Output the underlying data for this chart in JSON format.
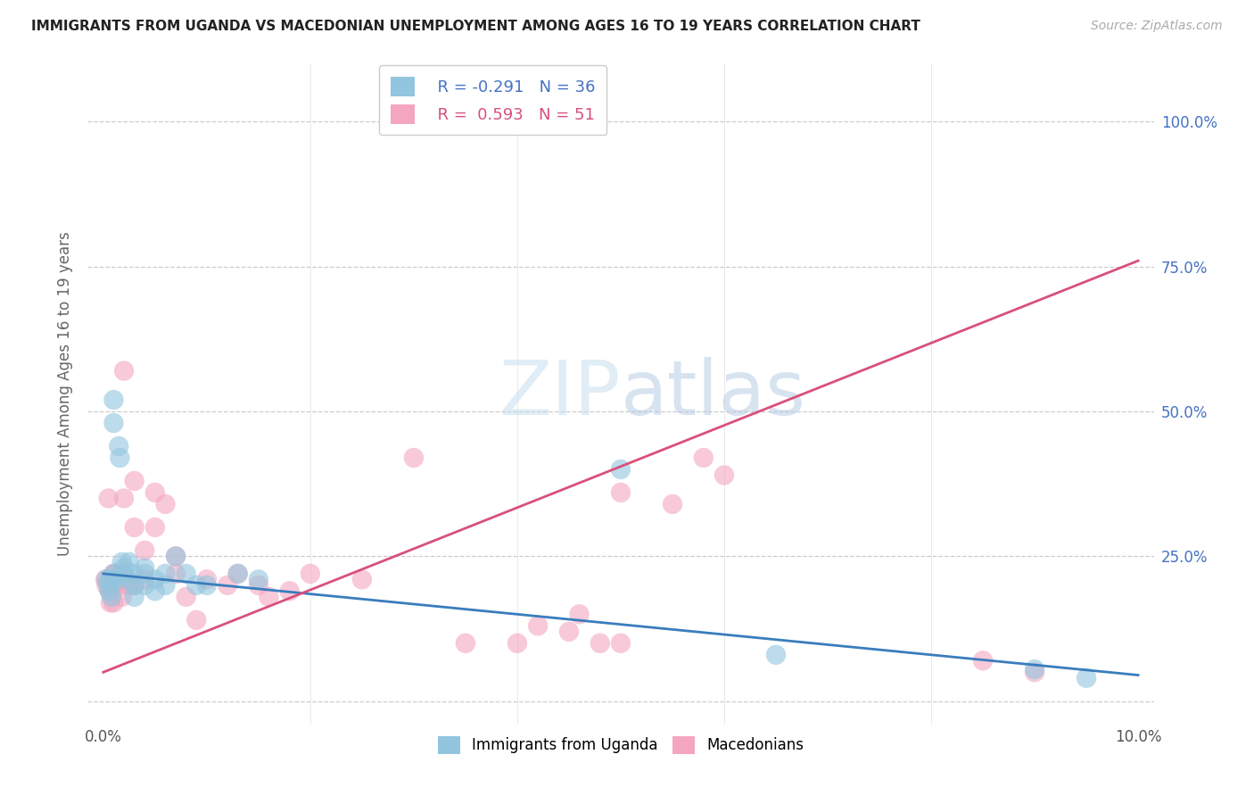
{
  "title": "IMMIGRANTS FROM UGANDA VS MACEDONIAN UNEMPLOYMENT AMONG AGES 16 TO 19 YEARS CORRELATION CHART",
  "source": "Source: ZipAtlas.com",
  "ylabel": "Unemployment Among Ages 16 to 19 years",
  "xlim": [
    0.0,
    0.1
  ],
  "ylim": [
    0.0,
    1.1
  ],
  "x_tick_vals": [
    0.0,
    0.02,
    0.04,
    0.06,
    0.08,
    0.1
  ],
  "x_tick_labels": [
    "0.0%",
    "",
    "",
    "",
    "",
    "10.0%"
  ],
  "y_tick_vals": [
    0.0,
    0.25,
    0.5,
    0.75,
    1.0
  ],
  "y_tick_labels_right": [
    "",
    "25.0%",
    "50.0%",
    "75.0%",
    "100.0%"
  ],
  "legend_label1": "Immigrants from Uganda",
  "legend_label2": "Macedonians",
  "r1": "-0.291",
  "n1": "36",
  "r2": "0.593",
  "n2": "51",
  "color_blue": "#92c5de",
  "color_pink": "#f4a6c0",
  "line_color_blue": "#3a7dbd",
  "line_color_pink": "#d9507a",
  "ug_line": [
    0.22,
    0.045
  ],
  "mac_line": [
    0.05,
    0.76
  ],
  "uganda_x": [
    0.0003,
    0.0005,
    0.0006,
    0.0007,
    0.0008,
    0.001,
    0.001,
    0.001,
    0.0013,
    0.0015,
    0.0016,
    0.0018,
    0.002,
    0.002,
    0.0023,
    0.0025,
    0.003,
    0.003,
    0.003,
    0.004,
    0.004,
    0.004,
    0.005,
    0.005,
    0.006,
    0.006,
    0.007,
    0.008,
    0.009,
    0.01,
    0.013,
    0.015,
    0.05,
    0.065,
    0.09,
    0.095
  ],
  "uganda_y": [
    0.21,
    0.2,
    0.19,
    0.21,
    0.18,
    0.52,
    0.48,
    0.22,
    0.21,
    0.44,
    0.42,
    0.24,
    0.23,
    0.22,
    0.21,
    0.24,
    0.22,
    0.2,
    0.18,
    0.23,
    0.22,
    0.2,
    0.21,
    0.19,
    0.22,
    0.2,
    0.25,
    0.22,
    0.2,
    0.2,
    0.22,
    0.21,
    0.4,
    0.08,
    0.055,
    0.04
  ],
  "macedonian_x": [
    0.0002,
    0.0003,
    0.0005,
    0.0006,
    0.0007,
    0.001,
    0.001,
    0.001,
    0.0012,
    0.0015,
    0.0016,
    0.0018,
    0.002,
    0.002,
    0.002,
    0.0022,
    0.0025,
    0.003,
    0.003,
    0.003,
    0.004,
    0.004,
    0.005,
    0.005,
    0.006,
    0.007,
    0.007,
    0.008,
    0.009,
    0.01,
    0.012,
    0.013,
    0.015,
    0.016,
    0.018,
    0.02,
    0.025,
    0.03,
    0.035,
    0.04,
    0.045,
    0.05,
    0.055,
    0.058,
    0.042,
    0.046,
    0.048,
    0.05,
    0.06,
    0.085,
    0.09
  ],
  "macedonian_y": [
    0.21,
    0.2,
    0.35,
    0.19,
    0.17,
    0.22,
    0.2,
    0.17,
    0.22,
    0.21,
    0.2,
    0.18,
    0.57,
    0.35,
    0.22,
    0.21,
    0.2,
    0.38,
    0.3,
    0.2,
    0.26,
    0.21,
    0.36,
    0.3,
    0.34,
    0.25,
    0.22,
    0.18,
    0.14,
    0.21,
    0.2,
    0.22,
    0.2,
    0.18,
    0.19,
    0.22,
    0.21,
    0.42,
    0.1,
    0.1,
    0.12,
    0.36,
    0.34,
    0.42,
    0.13,
    0.15,
    0.1,
    0.1,
    0.39,
    0.07,
    0.05
  ]
}
